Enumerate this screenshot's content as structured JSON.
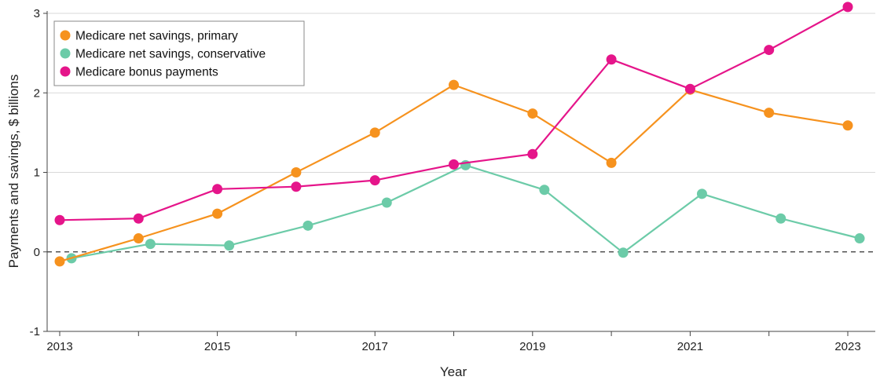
{
  "chart_data": {
    "type": "line",
    "title": "",
    "xlabel": "Year",
    "ylabel": "Payments and savings, $ billions",
    "xlim": [
      2013,
      2023
    ],
    "ylim": [
      -1,
      3
    ],
    "x_ticks": [
      "2013",
      "2015",
      "2017",
      "2019",
      "2021",
      "2023"
    ],
    "y_ticks": [
      "-1",
      "0",
      "1",
      "2",
      "3"
    ],
    "grid": "horizontal",
    "reference_line": {
      "value": 0,
      "style": "dashed"
    },
    "legend_position": "top-left",
    "series": [
      {
        "name": "Medicare net savings, primary",
        "color": "#F6921E",
        "x": [
          2013,
          2014,
          2015,
          2016,
          2017,
          2018,
          2019,
          2020,
          2021,
          2022,
          2023
        ],
        "values": [
          -0.12,
          0.17,
          0.48,
          1.0,
          1.5,
          2.1,
          1.74,
          1.12,
          2.04,
          1.75,
          1.59
        ]
      },
      {
        "name": "Medicare net savings, conservative",
        "color": "#6CCBA8",
        "x": [
          2013.15,
          2014.15,
          2015.15,
          2016.15,
          2017.15,
          2018.15,
          2019.15,
          2020.15,
          2021.15,
          2022.15,
          2023.15
        ],
        "values": [
          -0.08,
          0.1,
          0.08,
          0.33,
          0.62,
          1.09,
          0.78,
          -0.01,
          0.73,
          0.42,
          0.17
        ]
      },
      {
        "name": "Medicare bonus payments",
        "color": "#E5158A",
        "x": [
          2013,
          2014,
          2015,
          2016,
          2017,
          2018,
          2019,
          2020,
          2021,
          2022,
          2023
        ],
        "values": [
          0.4,
          0.42,
          0.79,
          0.82,
          0.9,
          1.1,
          1.23,
          2.42,
          2.05,
          2.54,
          3.08
        ]
      }
    ]
  }
}
